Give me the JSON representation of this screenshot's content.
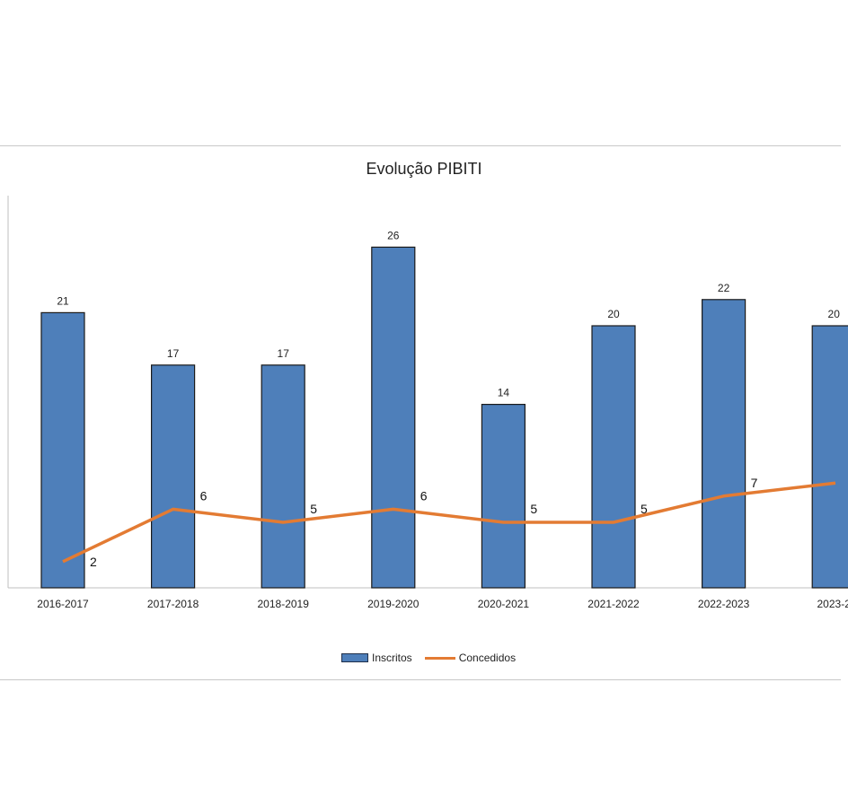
{
  "chart_data": {
    "type": "bar",
    "title": "Evolução PIBITI",
    "categories": [
      "2016-2017",
      "2017-2018",
      "2018-2019",
      "2019-2020",
      "2020-2021",
      "2021-2022",
      "2022-2023",
      "2023-2"
    ],
    "series": [
      {
        "name": "Inscritos",
        "type": "bar",
        "values": [
          21,
          17,
          17,
          26,
          14,
          20,
          22,
          20
        ]
      },
      {
        "name": "Concedidos",
        "type": "line",
        "values": [
          2,
          6,
          5,
          6,
          5,
          5,
          7,
          8
        ]
      }
    ],
    "value_labels": {
      "Inscritos": [
        "21",
        "17",
        "17",
        "26",
        "14",
        "20",
        "22",
        "20"
      ],
      "Concedidos": [
        "2",
        "6",
        "5",
        "6",
        "5",
        "5",
        "7",
        ""
      ]
    },
    "ylim": [
      0,
      30
    ],
    "grid": false,
    "legend_position": "bottom",
    "colors": {
      "Inscritos": "#4e7fba",
      "Concedidos": "#e37b33"
    }
  }
}
